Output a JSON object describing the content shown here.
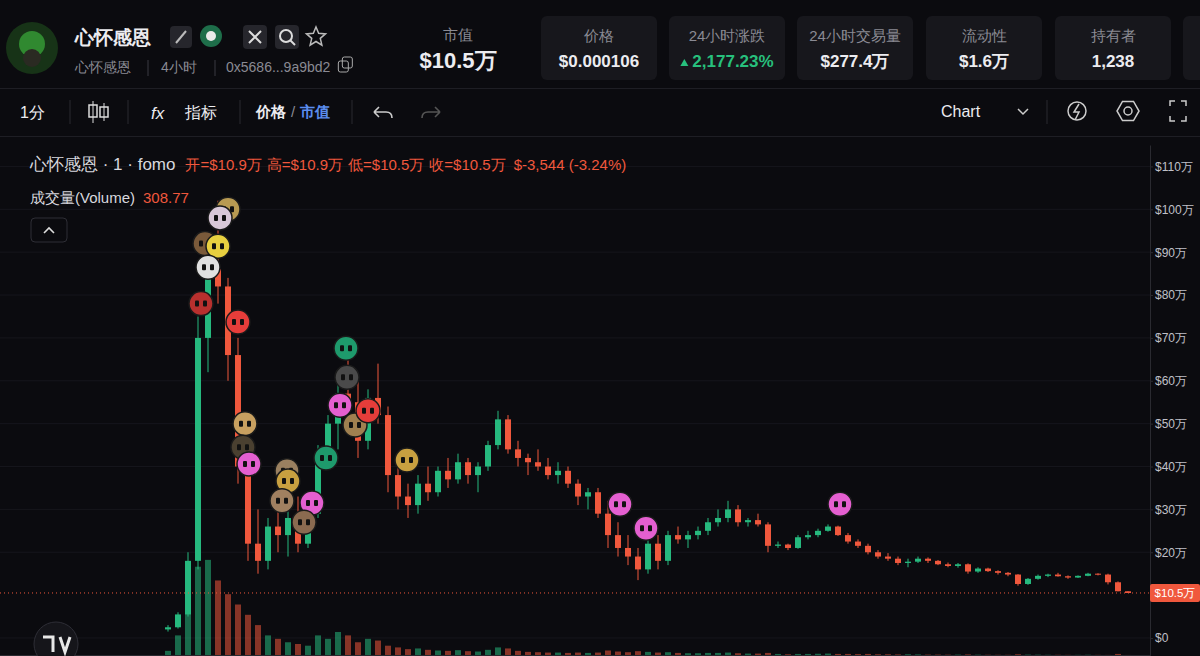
{
  "header": {
    "title": "心怀感恩",
    "subtitle": "心怀感恩",
    "age": "4小时",
    "address": "0x5686...9a9bd2",
    "market_cap_label": "市值",
    "market_cap": "$10.5万",
    "stats": [
      {
        "label": "价格",
        "value": "$0.000106"
      },
      {
        "label": "24小时涨跌",
        "value": "2,177.23%",
        "color": "#27c07d"
      },
      {
        "label": "24小时交易量",
        "value": "$277.4万"
      },
      {
        "label": "流动性",
        "value": "$1.6万"
      },
      {
        "label": "持有者",
        "value": "1,238"
      }
    ]
  },
  "toolbar": {
    "interval": "1分",
    "indicator_icon": "fx",
    "indicators": "指标",
    "price": "价格",
    "separator": "/",
    "mcap": "市值",
    "chart": "Chart"
  },
  "chart_data": {
    "type": "candlestick",
    "grid": true,
    "tick_labels": "y",
    "x": [
      0,
      1,
      2,
      3,
      4,
      5,
      6,
      7,
      8,
      9,
      10,
      11,
      12,
      13,
      14,
      15,
      16,
      17,
      18,
      19,
      20,
      21,
      22,
      23,
      24,
      25,
      26,
      27,
      28,
      29,
      30,
      31,
      32,
      33,
      34,
      35,
      36,
      37,
      38,
      39,
      40,
      41,
      42,
      43,
      44,
      45,
      46,
      47,
      48,
      49,
      50,
      51,
      52,
      53,
      54,
      55,
      56,
      57,
      58,
      59,
      60,
      61,
      62,
      63,
      64,
      65,
      66,
      67,
      68,
      69,
      70,
      71,
      72,
      73,
      74,
      75,
      76,
      77,
      78,
      79,
      80,
      81,
      82,
      83,
      84,
      85,
      86,
      87,
      88,
      89,
      90,
      91,
      92,
      93,
      94,
      95,
      96
    ],
    "xlim": [
      -16.8,
      98.2
    ],
    "ylim": [
      -4.2,
      115
    ],
    "yticks": [
      {
        "value": 0,
        "label": "$0"
      },
      {
        "value": 20,
        "label": "$20万"
      },
      {
        "value": 30,
        "label": "$30万"
      },
      {
        "value": 40,
        "label": "$40万"
      },
      {
        "value": 50,
        "label": "$50万"
      },
      {
        "value": 60,
        "label": "$60万"
      },
      {
        "value": 70,
        "label": "$70万"
      },
      {
        "value": 80,
        "label": "$80万"
      },
      {
        "value": 90,
        "label": "$90万"
      },
      {
        "value": 100,
        "label": "$100万"
      },
      {
        "value": 110,
        "label": "$110万"
      }
    ],
    "y2lim": [
      0,
      60000
    ],
    "series": [
      {
        "name": "心怀感恩 · 1 · fomo",
        "type": "candlestick",
        "open": [
          2,
          2.5,
          5.5,
          18,
          70,
          86,
          82,
          66,
          40,
          22,
          18,
          26,
          24,
          28,
          22,
          29,
          43,
          50,
          57,
          55,
          46,
          56,
          52,
          38,
          33,
          31,
          36,
          34,
          39,
          37,
          41,
          38,
          40,
          45,
          51,
          44,
          42,
          41,
          40,
          38,
          39,
          36,
          33,
          34,
          29,
          24,
          21,
          19,
          16,
          22,
          18,
          24,
          23,
          24,
          25,
          27,
          28,
          30,
          27,
          27.5,
          26.5,
          21.5,
          21.8,
          21,
          23.5,
          24,
          25,
          26,
          24,
          22.5,
          21.5,
          20,
          19,
          18.5,
          17.5,
          17.8,
          18.5,
          18,
          17.2,
          16.8,
          17.2,
          15.5,
          16.2,
          15.6,
          15.2,
          14.8,
          12.6,
          13.8,
          14.5,
          14.8,
          14.4,
          14.1,
          14.5,
          15,
          14.8,
          13,
          10.9
        ],
        "high": [
          3,
          6,
          20,
          75,
          92,
          102,
          84,
          70,
          45,
          30,
          28,
          32,
          30,
          33,
          30,
          45,
          52,
          60,
          67,
          60,
          58,
          64,
          54,
          42,
          36,
          38,
          40,
          40,
          42,
          43,
          42,
          41,
          46,
          53,
          52,
          46,
          43,
          44,
          42,
          41,
          40,
          37,
          35,
          35,
          32,
          27,
          24,
          21,
          23,
          24,
          25,
          26,
          25,
          26,
          28,
          30,
          32,
          31,
          28,
          29,
          27,
          22.5,
          22,
          24,
          25,
          25.5,
          26.5,
          26.2,
          24.5,
          23,
          22,
          20.5,
          19.8,
          19,
          18.5,
          19,
          18.8,
          18.2,
          17.6,
          17.5,
          17.4,
          16.5,
          16.4,
          15.8,
          15.4,
          14.9,
          14,
          14.8,
          15,
          15.2,
          14.6,
          14.6,
          15.2,
          15.1,
          15,
          13.2,
          10.9
        ],
        "low": [
          1.5,
          2.2,
          5,
          16,
          62,
          78,
          60,
          36,
          18,
          15,
          16,
          20,
          19,
          20,
          21,
          28,
          40,
          44,
          52,
          42,
          44,
          50,
          34,
          30,
          28,
          29,
          32,
          33,
          35,
          36,
          36,
          34,
          39,
          44,
          43,
          40,
          38,
          39,
          37,
          36,
          35,
          31,
          30,
          28,
          21,
          19,
          17,
          13.5,
          15,
          16,
          17,
          22,
          21,
          23,
          24,
          26,
          27,
          26,
          26,
          26,
          20,
          21,
          20.5,
          20.8,
          23,
          23.5,
          24.8,
          23.8,
          22,
          21,
          19.5,
          18.5,
          18,
          17,
          16.5,
          17.5,
          17.5,
          17,
          16.5,
          16.4,
          15,
          15.2,
          15.4,
          14.8,
          14.4,
          12.2,
          12.4,
          13.6,
          14.2,
          14.3,
          13.8,
          14,
          14.4,
          14.6,
          12.5,
          10.9,
          10.5
        ],
        "close": [
          2.5,
          5.5,
          18,
          70,
          86,
          82,
          66,
          40,
          22,
          18,
          26,
          24,
          28,
          22,
          29,
          43,
          50,
          57,
          55,
          46,
          56,
          52,
          38,
          33,
          31,
          36,
          34,
          39,
          37,
          41,
          38,
          40,
          45,
          51,
          44,
          42,
          41,
          40,
          38,
          39,
          36,
          33,
          34,
          29,
          24,
          21,
          19,
          16,
          22,
          18,
          24,
          23,
          24,
          25,
          27,
          28,
          30,
          27,
          27.5,
          26.5,
          21.5,
          21.8,
          21,
          23.5,
          24,
          25,
          26,
          24,
          22.5,
          21.5,
          20,
          19,
          18.5,
          17.5,
          17.8,
          18.5,
          18,
          17.2,
          16.8,
          17.2,
          15.5,
          16.2,
          15.6,
          15.2,
          14.8,
          12.6,
          13.8,
          14.5,
          14.8,
          14.4,
          14.1,
          14.5,
          15,
          14.8,
          13,
          10.9,
          10.5
        ]
      },
      {
        "name": "成交量(Volume)",
        "type": "bar",
        "axis": "y2",
        "values": [
          1500,
          6000,
          14000,
          26000,
          28000,
          22000,
          18000,
          15000,
          12000,
          9000,
          6000,
          5000,
          4000,
          3500,
          3000,
          6000,
          5000,
          7000,
          6000,
          4000,
          5000,
          4500,
          3000,
          2500,
          2000,
          2200,
          1800,
          1600,
          1500,
          1700,
          1400,
          1300,
          1800,
          2500,
          2200,
          1500,
          1200,
          1100,
          1000,
          1000,
          900,
          1000,
          900,
          1000,
          1600,
          1300,
          1100,
          1400,
          1200,
          1000,
          1100,
          900,
          800,
          800,
          900,
          900,
          1000,
          800,
          700,
          700,
          900,
          600,
          500,
          600,
          600,
          650,
          700,
          600,
          600,
          550,
          600,
          500,
          500,
          450,
          500,
          450,
          400,
          400,
          380,
          400,
          450,
          380,
          360,
          350,
          350,
          500,
          400,
          380,
          350,
          350,
          330,
          340,
          360,
          330,
          320,
          600,
          308.77
        ]
      }
    ],
    "annotations": {
      "open": "开=$10.9万",
      "high": "高=$10.9万",
      "low": "低=$10.5万",
      "close": "收=$10.5万",
      "change": "$-3,544 (-3.24%)",
      "volume_value": "308.77",
      "last_price": "$10.5万"
    },
    "trade_markers": [
      {
        "x": 6,
        "y": 100,
        "color": "#b89a52"
      },
      {
        "x": 5.2,
        "y": 98,
        "color": "#d8c8d8"
      },
      {
        "x": 3.7,
        "y": 92,
        "color": "#7a5a3a"
      },
      {
        "x": 5,
        "y": 91.4,
        "color": "#e8d040"
      },
      {
        "x": 4,
        "y": 86.5,
        "color": "#e0e0e0"
      },
      {
        "x": 3.3,
        "y": 78,
        "color": "#b8302e"
      },
      {
        "x": 7,
        "y": 73.7,
        "color": "#e63d3a"
      },
      {
        "x": 17.8,
        "y": 67.6,
        "color": "#1e9a6c"
      },
      {
        "x": 17.9,
        "y": 60.8,
        "color": "#4a4a4a"
      },
      {
        "x": 17.2,
        "y": 54.3,
        "color": "#e45fd0"
      },
      {
        "x": 18.7,
        "y": 49.7,
        "color": "#a08050"
      },
      {
        "x": 20,
        "y": 53,
        "color": "#e63d3a"
      },
      {
        "x": 7.7,
        "y": 50,
        "color": "#c8a060"
      },
      {
        "x": 7.5,
        "y": 44.5,
        "color": "#4a4030"
      },
      {
        "x": 8.1,
        "y": 40.6,
        "color": "#e45fd0"
      },
      {
        "x": 15.8,
        "y": 42,
        "color": "#1e9a6c"
      },
      {
        "x": 23.9,
        "y": 41.5,
        "color": "#c8a040"
      },
      {
        "x": 11.9,
        "y": 39,
        "color": "#9a8060"
      },
      {
        "x": 12,
        "y": 36.6,
        "color": "#c8a040"
      },
      {
        "x": 14.4,
        "y": 31.5,
        "color": "#e45fd0"
      },
      {
        "x": 11.4,
        "y": 32,
        "color": "#a08060"
      },
      {
        "x": 13.6,
        "y": 27,
        "color": "#8a6a50"
      },
      {
        "x": 45.2,
        "y": 31.2,
        "color": "#e45fd0"
      },
      {
        "x": 47.8,
        "y": 25.6,
        "color": "#e45fd0"
      },
      {
        "x": 67.2,
        "y": 31.2,
        "color": "#e45fd0"
      }
    ]
  }
}
